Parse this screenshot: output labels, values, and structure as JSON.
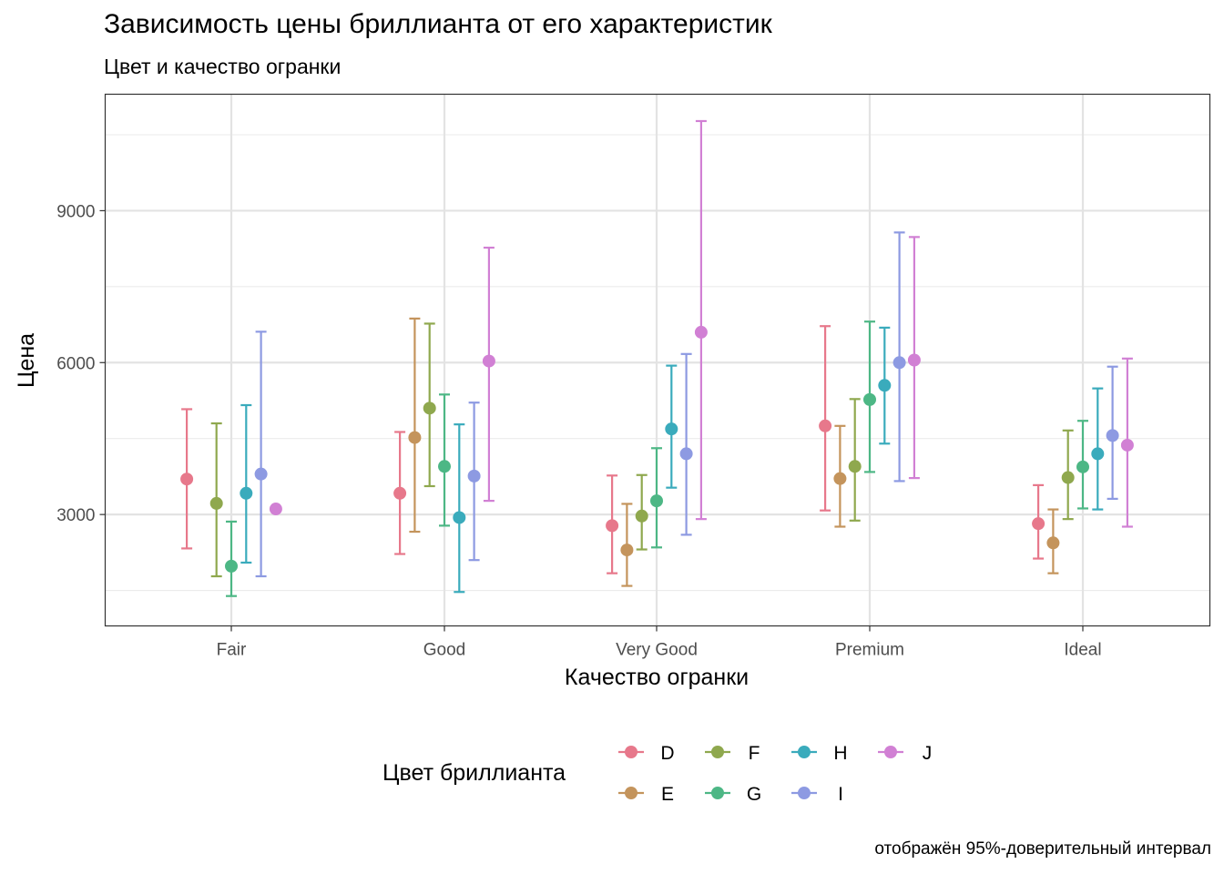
{
  "title": "Зависимость цены бриллианта от его характеристик",
  "subtitle": "Цвет и качество огранки",
  "caption": "отображён 95%-доверительный интервал",
  "chart_data": {
    "type": "scatter",
    "subtype": "pointrange",
    "xlabel": "Качество огранки",
    "ylabel": "Цена",
    "categories": [
      "Fair",
      "Good",
      "Very Good",
      "Premium",
      "Ideal"
    ],
    "y_ticks": [
      3000,
      6000,
      9000
    ],
    "ylim": [
      800,
      11300
    ],
    "grid": true,
    "legend": {
      "title": "Цвет бриллианта",
      "position": "bottom"
    },
    "series": [
      {
        "name": "D",
        "color": "#E7788B",
        "values": [
          3700,
          3420,
          2780,
          4750,
          2820
        ],
        "lower": [
          2330,
          2220,
          1840,
          3080,
          2130
        ],
        "upper": [
          5080,
          4630,
          3770,
          6720,
          3580
        ]
      },
      {
        "name": "E",
        "color": "#C4945C",
        "values": [
          null,
          4520,
          2300,
          3710,
          2440
        ],
        "lower": [
          null,
          2660,
          1590,
          2760,
          1840
        ],
        "upper": [
          null,
          6870,
          3210,
          4750,
          3100
        ]
      },
      {
        "name": "F",
        "color": "#8FA84E",
        "values": [
          3220,
          5100,
          2970,
          3950,
          3730
        ],
        "lower": [
          1780,
          3560,
          2310,
          2880,
          2910
        ],
        "upper": [
          4800,
          6770,
          3780,
          5280,
          4660
        ]
      },
      {
        "name": "G",
        "color": "#4DB785",
        "values": [
          1980,
          3950,
          3270,
          5270,
          3940
        ],
        "lower": [
          1390,
          2780,
          2350,
          3840,
          3120
        ],
        "upper": [
          2860,
          5370,
          4310,
          6810,
          4850
        ]
      },
      {
        "name": "H",
        "color": "#3AABBC",
        "values": [
          3420,
          2940,
          4690,
          5550,
          4200
        ],
        "lower": [
          2050,
          1470,
          3530,
          4400,
          3100
        ],
        "upper": [
          5160,
          4780,
          5940,
          6690,
          5490
        ]
      },
      {
        "name": "I",
        "color": "#8D9AE2",
        "values": [
          3800,
          3760,
          4200,
          6000,
          4560
        ],
        "lower": [
          1780,
          2100,
          2600,
          3660,
          3310
        ],
        "upper": [
          6610,
          5210,
          6170,
          8570,
          5920
        ]
      },
      {
        "name": "J",
        "color": "#D180D4",
        "values": [
          3110,
          6030,
          6600,
          6050,
          4370
        ],
        "lower": [
          null,
          3270,
          2910,
          3720,
          2760
        ],
        "upper": [
          null,
          8270,
          10770,
          8480,
          6080
        ]
      }
    ]
  }
}
